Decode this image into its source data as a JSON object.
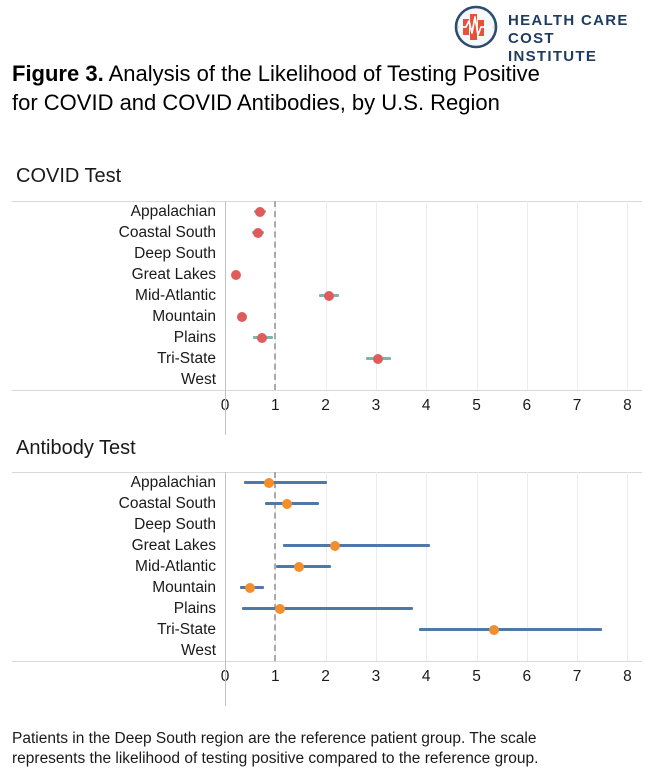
{
  "header": {
    "logo_icon": "hcci-pulse-bars-logo",
    "brand_line1": "HEALTH CARE",
    "brand_line2": "COST INSTITUTE",
    "brand_color": "#1d3c5e",
    "logo_red": "#e8503a"
  },
  "title": {
    "prefix": "Figure 3.",
    "rest": "Analysis of the Likelihood of Testing Positive for COVID and COVID Antibodies, by U.S. Region"
  },
  "footnote": "Patients in the Deep South region are the reference patient group. The scale represents the likelihood of testing positive compared to the reference group.",
  "chart_data": [
    {
      "type": "scatter",
      "variant": "horizontal-dot-plot-with-ci",
      "title": "COVID Test",
      "categories": [
        "Appalachian",
        "Coastal South",
        "Deep South",
        "Great Lakes",
        "Mid-Atlantic",
        "Mountain",
        "Plains",
        "Tri-State",
        "West"
      ],
      "series": [
        {
          "name": "Likelihood of testing positive (odds ratio vs. Deep South)",
          "values": [
            0.69,
            0.65,
            null,
            0.22,
            2.06,
            0.34,
            0.73,
            3.05,
            null
          ],
          "ci_low": [
            0.58,
            0.53,
            null,
            null,
            1.86,
            null,
            0.56,
            2.8,
            null
          ],
          "ci_high": [
            0.81,
            0.77,
            null,
            null,
            2.26,
            null,
            0.96,
            3.3,
            null
          ]
        }
      ],
      "xlim": [
        0,
        8
      ],
      "xticks": [
        0,
        1,
        2,
        3,
        4,
        5,
        6,
        7,
        8
      ],
      "reference_line_x": 1,
      "grid": true,
      "dot_color": "#e05c5c",
      "bar_color": "#76b7b2"
    },
    {
      "type": "scatter",
      "variant": "horizontal-dot-plot-with-ci",
      "title": "Antibody Test",
      "categories": [
        "Appalachian",
        "Coastal South",
        "Deep South",
        "Great Lakes",
        "Mid-Atlantic",
        "Mountain",
        "Plains",
        "Tri-State",
        "West"
      ],
      "series": [
        {
          "name": "Likelihood of testing positive (odds ratio vs. Deep South)",
          "values": [
            0.88,
            1.23,
            null,
            2.18,
            1.48,
            0.5,
            1.09,
            5.35,
            null
          ],
          "ci_low": [
            0.38,
            0.79,
            null,
            1.15,
            1.02,
            0.3,
            0.34,
            3.85,
            null
          ],
          "ci_high": [
            2.02,
            1.87,
            null,
            4.07,
            2.1,
            0.77,
            3.74,
            7.5,
            null
          ]
        }
      ],
      "xlim": [
        0,
        8
      ],
      "xticks": [
        0,
        1,
        2,
        3,
        4,
        5,
        6,
        7,
        8
      ],
      "reference_line_x": 1,
      "grid": true,
      "dot_color": "#f28e2b",
      "bar_color": "#4e79a7"
    }
  ]
}
